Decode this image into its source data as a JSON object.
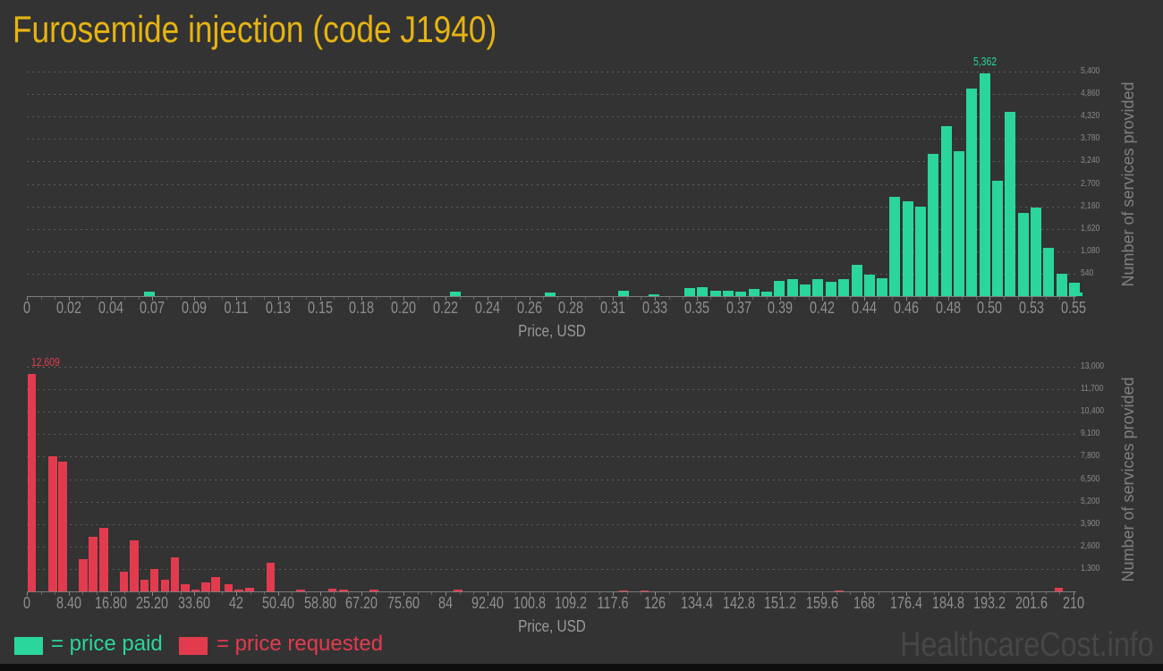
{
  "title": "Furosemide injection (code J1940)",
  "watermark": "HealthcareCost.info",
  "legend": {
    "paid_label": "= price paid",
    "requested_label": "= price requested"
  },
  "colors": {
    "background": "#333333",
    "paid": "#2ad69b",
    "requested": "#e33b4e",
    "title": "#e6b412",
    "axis_text": "#8e8e8e",
    "grid": "#5e5e5e",
    "watermark": "#474747"
  },
  "chart_data": [
    {
      "type": "bar",
      "series_name": "price paid",
      "xlabel": "Price, USD",
      "ylabel": "Number of services provided",
      "x_tick_labels": [
        "0",
        "0.02",
        "0.04",
        "0.07",
        "0.09",
        "0.11",
        "0.13",
        "0.15",
        "0.18",
        "0.20",
        "0.22",
        "0.24",
        "0.26",
        "0.28",
        "0.31",
        "0.33",
        "0.35",
        "0.37",
        "0.39",
        "0.42",
        "0.44",
        "0.46",
        "0.48",
        "0.50",
        "0.53",
        "0.55"
      ],
      "x_tick_step_usd": 0.022,
      "ylim": [
        0,
        5400
      ],
      "ytick_step": 540,
      "y_tick_labels": [
        "540",
        "1,080",
        "1,620",
        "2,160",
        "2,700",
        "3,240",
        "3,780",
        "4,320",
        "4,860",
        "5,400"
      ],
      "grid": "dotted-horizontal",
      "max_annotation": "5,362",
      "bars": [
        [
          0.0643,
          100
        ],
        [
          0.2251,
          100
        ],
        [
          0.2752,
          80
        ],
        [
          0.3134,
          120
        ],
        [
          0.3295,
          40
        ],
        [
          0.3484,
          190
        ],
        [
          0.3551,
          210
        ],
        [
          0.3618,
          130
        ],
        [
          0.3686,
          130
        ],
        [
          0.3753,
          100
        ],
        [
          0.3821,
          170
        ],
        [
          0.3888,
          115
        ],
        [
          0.3955,
          360
        ],
        [
          0.4023,
          420
        ],
        [
          0.409,
          280
        ],
        [
          0.4157,
          420
        ],
        [
          0.4225,
          340
        ],
        [
          0.4292,
          410
        ],
        [
          0.436,
          750
        ],
        [
          0.4427,
          520
        ],
        [
          0.4494,
          430
        ],
        [
          0.4561,
          2390
        ],
        [
          0.4629,
          2280
        ],
        [
          0.4696,
          2150
        ],
        [
          0.4764,
          3420
        ],
        [
          0.4831,
          4090
        ],
        [
          0.4898,
          3490
        ],
        [
          0.4966,
          4990
        ],
        [
          0.5033,
          5362
        ],
        [
          0.5101,
          2780
        ],
        [
          0.5168,
          4430
        ],
        [
          0.5235,
          2010
        ],
        [
          0.5303,
          2140
        ],
        [
          0.537,
          1170
        ],
        [
          0.5438,
          545
        ],
        [
          0.5505,
          320
        ],
        [
          0.552,
          90
        ]
      ]
    },
    {
      "type": "bar",
      "series_name": "price requested",
      "xlabel": "Price, USD",
      "ylabel": "Number of services provided",
      "x_tick_labels": [
        "0",
        "8.40",
        "16.80",
        "25.20",
        "33.60",
        "42",
        "50.40",
        "58.80",
        "67.20",
        "75.60",
        "84",
        "92.40",
        "100.8",
        "109.2",
        "117.6",
        "126",
        "134.4",
        "142.8",
        "151.2",
        "159.6",
        "168",
        "176.4",
        "184.8",
        "193.2",
        "201.6",
        "210"
      ],
      "x_tick_step_usd": 8.4,
      "ylim": [
        0,
        13000
      ],
      "ytick_step": 1300,
      "y_tick_labels": [
        "1,300",
        "2,600",
        "3,900",
        "5,200",
        "6,500",
        "7,800",
        "9,100",
        "10,400",
        "11,700",
        "13,000"
      ],
      "grid": "dotted-horizontal",
      "max_annotation": "12,609",
      "bars": [
        [
          1.0,
          12609
        ],
        [
          5.2,
          7830
        ],
        [
          7.2,
          7500
        ],
        [
          11.3,
          1860
        ],
        [
          13.3,
          3160
        ],
        [
          15.4,
          3670
        ],
        [
          19.5,
          1150
        ],
        [
          21.5,
          2950
        ],
        [
          23.6,
          655
        ],
        [
          25.6,
          1310
        ],
        [
          27.7,
          655
        ],
        [
          29.7,
          1980
        ],
        [
          31.8,
          400
        ],
        [
          33.8,
          90
        ],
        [
          35.9,
          520
        ],
        [
          37.9,
          830
        ],
        [
          40.5,
          420
        ],
        [
          42.5,
          120
        ],
        [
          44.7,
          220
        ],
        [
          48.9,
          1650
        ],
        [
          54.9,
          120
        ],
        [
          61.3,
          170
        ],
        [
          63.5,
          120
        ],
        [
          69.6,
          90
        ],
        [
          86.5,
          120
        ],
        [
          119.7,
          60
        ],
        [
          123.9,
          70
        ],
        [
          163.0,
          80
        ],
        [
          207.0,
          200
        ]
      ]
    }
  ]
}
